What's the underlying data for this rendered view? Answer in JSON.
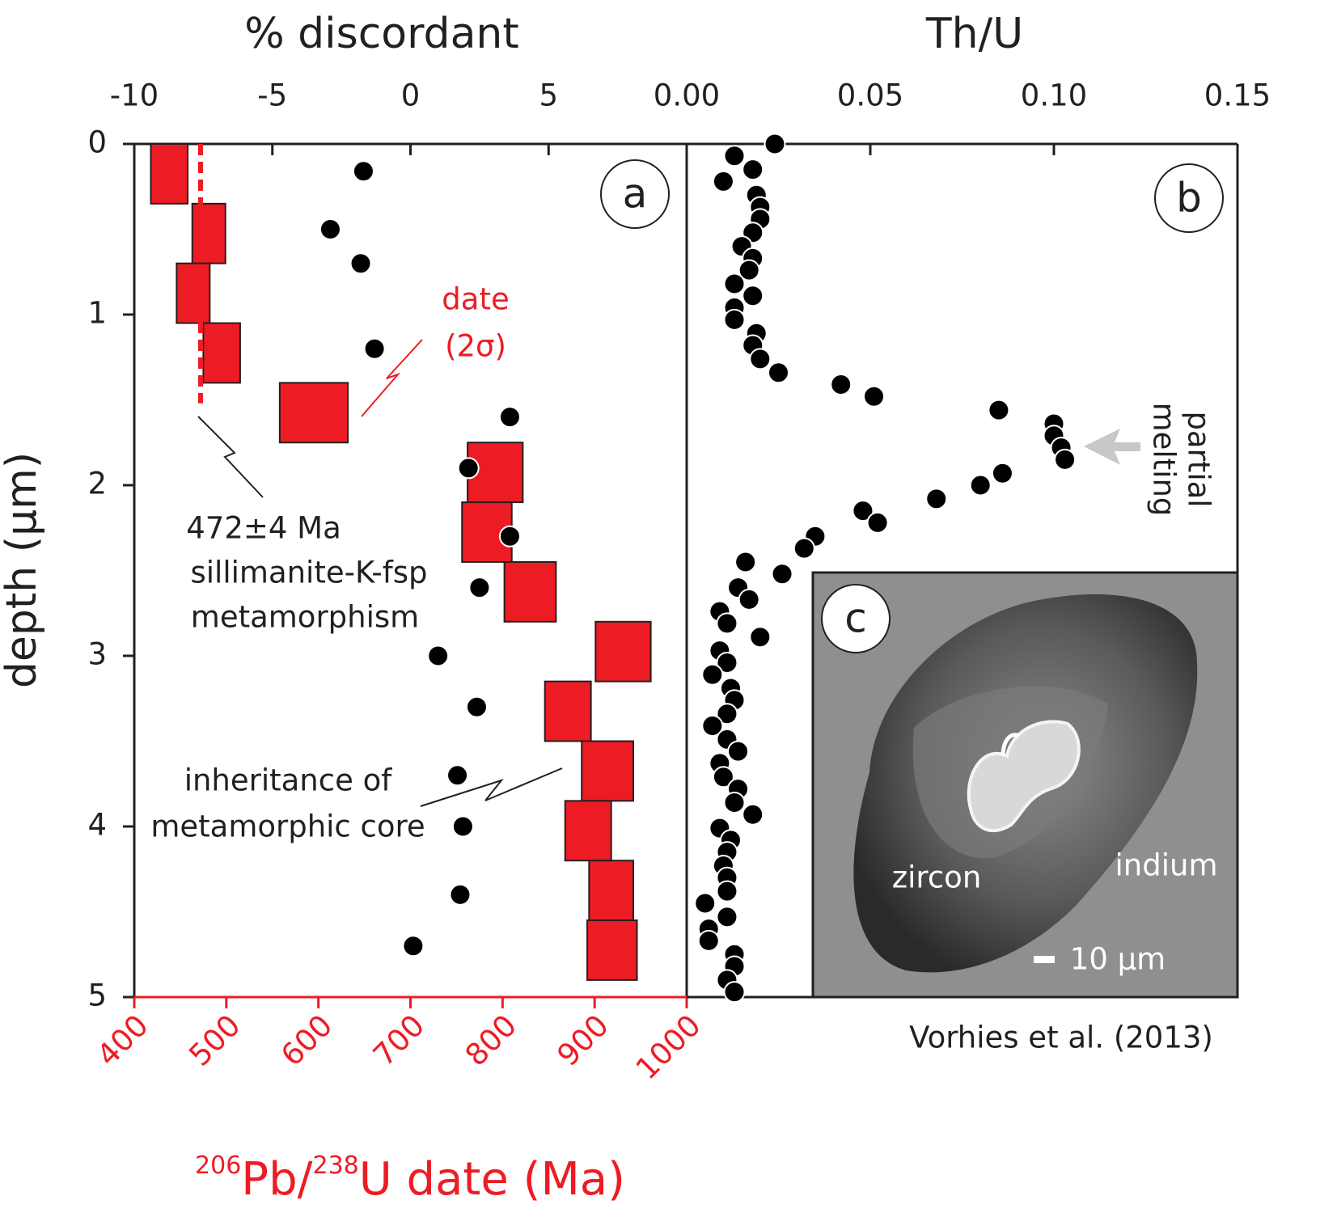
{
  "chart_data": [
    {
      "type": "depth-profile",
      "panel_label": "a",
      "title": "% discordant",
      "xlim": [
        -10,
        10
      ],
      "xticks": [
        -10,
        -5,
        0,
        5
      ],
      "x2_label": [
        "206",
        "Pb/",
        "238",
        "U date (Ma)"
      ],
      "x2lim": [
        400,
        1000
      ],
      "x2ticks": [
        400,
        500,
        600,
        700,
        800,
        900,
        1000
      ],
      "x2_color": "#ed1c24",
      "ylabel": "depth (µm)",
      "ylim": [
        0,
        5
      ],
      "yticks": [
        0,
        1,
        2,
        3,
        4,
        5
      ],
      "discordant": {
        "color": "#000000",
        "values": [
          -1.7,
          -2.9,
          -1.8,
          -1.3,
          3.6,
          2.1,
          3.6,
          2.5,
          1.0,
          2.4,
          1.7,
          1.9,
          1.8,
          0.1
        ],
        "depth": [
          0.16,
          0.5,
          0.7,
          1.2,
          1.6,
          1.9,
          2.3,
          2.6,
          3.0,
          3.3,
          3.7,
          4.0,
          4.4,
          4.7
        ]
      },
      "dates": {
        "color": "#ed1c24",
        "values": [
          438,
          481,
          464,
          495,
          595,
          792,
          783,
          830,
          931,
          871,
          914,
          893,
          918,
          919
        ],
        "errors": [
          20,
          18,
          18,
          20,
          37,
          30,
          27,
          28,
          30,
          25,
          28,
          25,
          24,
          27
        ],
        "depth_top": [
          0,
          0.35,
          0.7,
          1.05,
          1.4,
          1.75,
          2.1,
          2.45,
          2.8,
          3.15,
          3.5,
          3.85,
          4.2,
          4.55
        ],
        "depth_bottom": [
          0.35,
          0.7,
          1.05,
          1.4,
          1.75,
          2.1,
          2.45,
          2.8,
          3.15,
          3.5,
          3.85,
          4.2,
          4.55,
          4.9
        ]
      },
      "reference": {
        "value": 472,
        "depth": [
          0,
          1.52
        ],
        "color": "#ed1c24"
      },
      "annotations": {
        "date": [
          "date",
          "(2σ)"
        ],
        "metamorphism": [
          "472±4 Ma",
          "sillimanite-K-fsp",
          "metamorphism"
        ],
        "inheritance": [
          "inheritance of",
          "metamorphic core"
        ]
      }
    },
    {
      "type": "depth-profile",
      "panel_label": "b",
      "title": "Th/U",
      "xlim": [
        0,
        0.15
      ],
      "xticks": [
        {
          "value": 0,
          "label": "0.00"
        },
        0.05,
        {
          "value": 0.1,
          "label": "0.10"
        },
        0.15
      ],
      "ylim": [
        0,
        5
      ],
      "series": {
        "color": "#000000",
        "values": [
          0.024,
          0.013,
          0.018,
          0.01,
          0.019,
          0.02,
          0.02,
          0.018,
          0.015,
          0.018,
          0.017,
          0.013,
          0.018,
          0.013,
          0.013,
          0.019,
          0.018,
          0.02,
          0.025,
          0.042,
          0.051,
          0.085,
          0.1,
          0.1,
          0.102,
          0.103,
          0.086,
          0.08,
          0.068,
          0.048,
          0.052,
          0.035,
          0.032,
          0.016,
          0.026,
          0.014,
          0.017,
          0.009,
          0.011,
          0.02,
          0.009,
          0.011,
          0.007,
          0.012,
          0.013,
          0.011,
          0.007,
          0.011,
          0.014,
          0.009,
          0.01,
          0.014,
          0.013,
          0.018,
          0.009,
          0.012,
          0.011,
          0.01,
          0.011,
          0.011,
          0.005,
          0.011,
          0.006,
          0.006,
          0.013,
          0.013,
          0.011,
          0.013
        ],
        "depth": [
          0.0,
          0.07,
          0.15,
          0.22,
          0.3,
          0.37,
          0.44,
          0.52,
          0.6,
          0.67,
          0.74,
          0.82,
          0.89,
          0.96,
          1.03,
          1.11,
          1.18,
          1.26,
          1.34,
          1.41,
          1.48,
          1.56,
          1.64,
          1.71,
          1.78,
          1.85,
          1.93,
          2.0,
          2.08,
          2.15,
          2.22,
          2.3,
          2.37,
          2.45,
          2.52,
          2.6,
          2.67,
          2.74,
          2.81,
          2.89,
          2.97,
          3.04,
          3.11,
          3.19,
          3.26,
          3.34,
          3.41,
          3.49,
          3.56,
          3.63,
          3.71,
          3.78,
          3.86,
          3.93,
          4.01,
          4.08,
          4.15,
          4.23,
          4.3,
          4.38,
          4.45,
          4.53,
          4.6,
          4.67,
          4.75,
          4.82,
          4.9,
          4.97
        ]
      },
      "annotations": {
        "melting": [
          "partial",
          "melting"
        ]
      },
      "source": "Vorhies et al. (2013)"
    }
  ],
  "inset": {
    "label": "c",
    "texts": [
      "zircon",
      "indium",
      "10 µm"
    ]
  }
}
